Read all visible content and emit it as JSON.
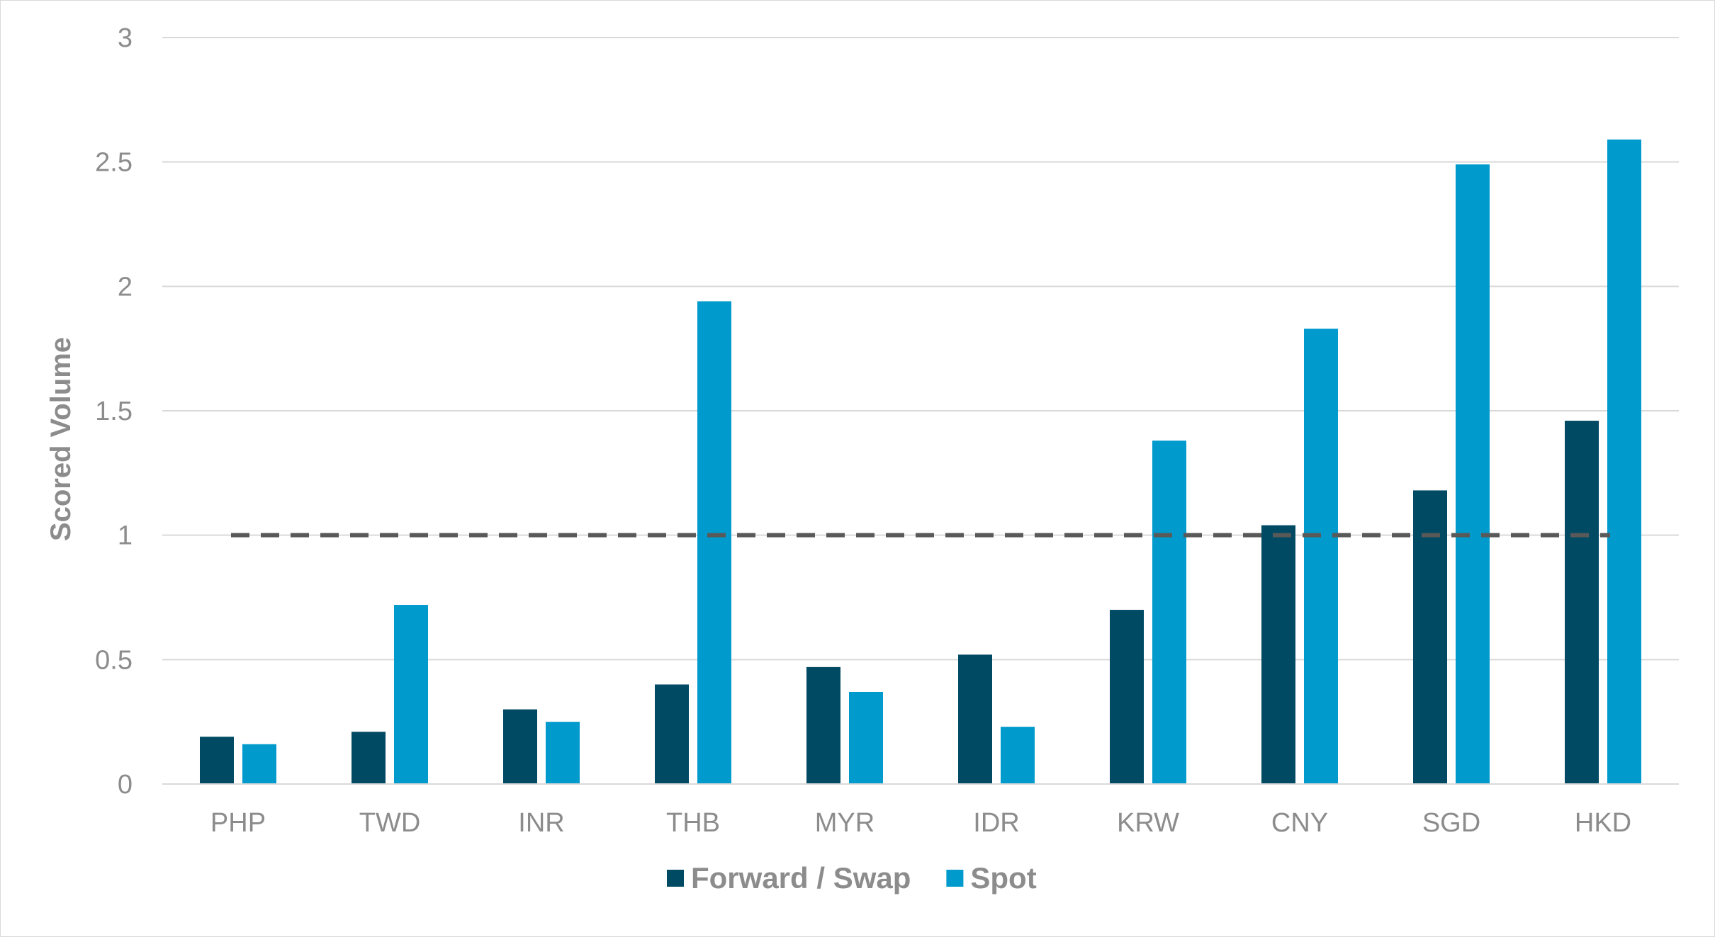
{
  "chart_data": {
    "type": "bar",
    "title": "",
    "xlabel": "",
    "ylabel": "Scored Volume",
    "ylim": [
      0,
      3
    ],
    "yticks": [
      "0",
      "0.5",
      "1",
      "1.5",
      "2",
      "2.5",
      "3"
    ],
    "grid": true,
    "legend_position": "bottom",
    "categories": [
      "PHP",
      "TWD",
      "INR",
      "THB",
      "MYR",
      "IDR",
      "KRW",
      "CNY",
      "SGD",
      "HKD"
    ],
    "series": [
      {
        "name": "Forward / Swap",
        "color": "#004A64",
        "values": [
          0.19,
          0.21,
          0.3,
          0.4,
          0.47,
          0.52,
          0.7,
          1.04,
          1.18,
          1.46
        ]
      },
      {
        "name": "Spot",
        "color": "#009ACD",
        "values": [
          0.16,
          0.72,
          0.25,
          1.94,
          0.37,
          0.23,
          1.38,
          1.83,
          2.49,
          2.59
        ]
      }
    ],
    "reference_line": {
      "value": 1,
      "style": "dashed",
      "color": "#595959"
    },
    "gridline_color": "#d9d9d9",
    "axis_color": "#d9d9d9"
  }
}
